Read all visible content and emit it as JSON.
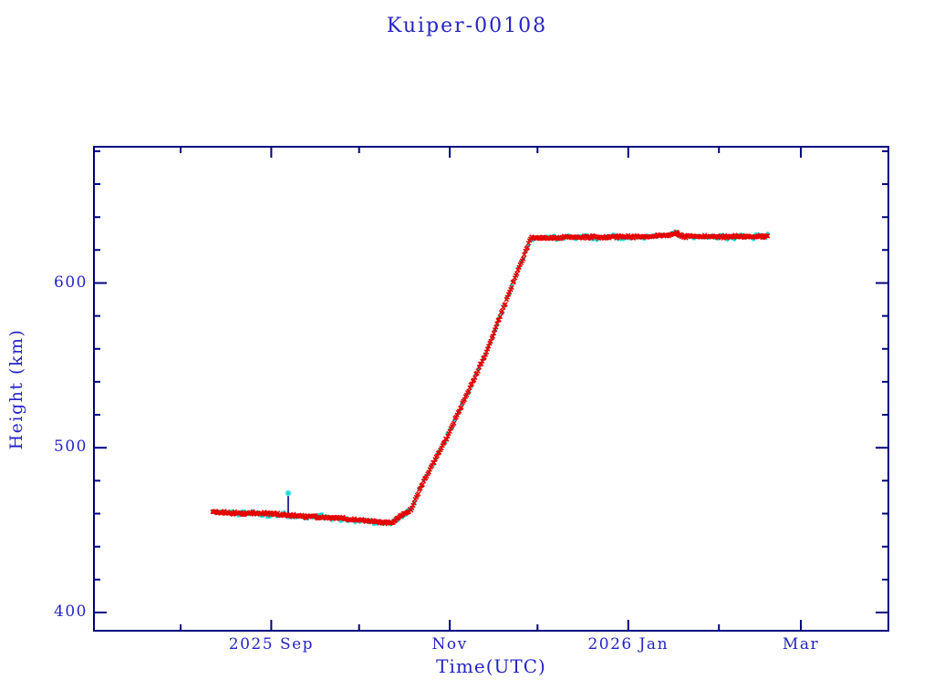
{
  "chart_data": {
    "type": "scatter",
    "title": "Kuiper-00108",
    "xlabel": "Time(UTC)",
    "ylabel": "Height (km)",
    "colors": {
      "axis": "#000080",
      "text": "#2424c4",
      "red_series": "#e60000",
      "cyan_series": "#00dcdc",
      "outlier_stem": "#000080"
    },
    "x_axis": {
      "epoch": "2025-08-01",
      "unit": "days since 2025 Aug 1",
      "ticks": [
        {
          "day": 0,
          "label": ""
        },
        {
          "day": 31,
          "label": "2025 Sep"
        },
        {
          "day": 61,
          "label": ""
        },
        {
          "day": 92,
          "label": "Nov"
        },
        {
          "day": 122,
          "label": ""
        },
        {
          "day": 153,
          "label": "2026 Jan"
        },
        {
          "day": 184,
          "label": ""
        },
        {
          "day": 212,
          "label": "Mar"
        }
      ]
    },
    "y_axis": {
      "major_ticks": [
        400,
        500,
        600
      ],
      "minor_ticks": [
        420,
        440,
        460,
        480,
        520,
        540,
        560,
        580,
        620,
        640,
        660,
        680
      ],
      "range_km": [
        389,
        682
      ],
      "grid": false
    },
    "series": [
      {
        "name": "height-secondary-cyan",
        "marker": "star",
        "color_key": "cyan_series",
        "anchors_day_km": [
          [
            11,
            460.9
          ],
          [
            31.5,
            459.8
          ],
          [
            50,
            457.6
          ],
          [
            66,
            455.3
          ],
          [
            71.7,
            454.2
          ],
          [
            79,
            463.0
          ],
          [
            82,
            475.8
          ],
          [
            91,
            506.2
          ],
          [
            105,
            559.9
          ],
          [
            113,
            597.0
          ],
          [
            119.7,
            627.4
          ],
          [
            135,
            627.7
          ],
          [
            160,
            628.2
          ],
          [
            167.5,
            629.2
          ],
          [
            169.5,
            630.6
          ],
          [
            171.5,
            628.4
          ],
          [
            186,
            628.0
          ],
          [
            201,
            628.4
          ]
        ]
      },
      {
        "name": "height-measured-red",
        "marker": "cross",
        "color_key": "red_series",
        "anchors_day_km": [
          [
            11,
            460.9
          ],
          [
            31.5,
            459.8
          ],
          [
            50,
            457.6
          ],
          [
            66,
            455.3
          ],
          [
            71.7,
            454.2
          ],
          [
            79,
            463.0
          ],
          [
            82,
            475.8
          ],
          [
            91,
            506.2
          ],
          [
            105,
            559.9
          ],
          [
            113,
            597.0
          ],
          [
            119.7,
            627.4
          ],
          [
            135,
            627.7
          ],
          [
            160,
            628.2
          ],
          [
            167.5,
            629.2
          ],
          [
            169.5,
            630.6
          ],
          [
            171.5,
            628.4
          ],
          [
            186,
            628.0
          ],
          [
            201,
            628.4
          ]
        ]
      }
    ],
    "outlier": {
      "day": 36.8,
      "height_km": 472.5,
      "base_km": 460.2,
      "marker": "star",
      "marker_color_key": "cyan_series",
      "stem_color_key": "outlier_stem"
    },
    "legend": null
  }
}
